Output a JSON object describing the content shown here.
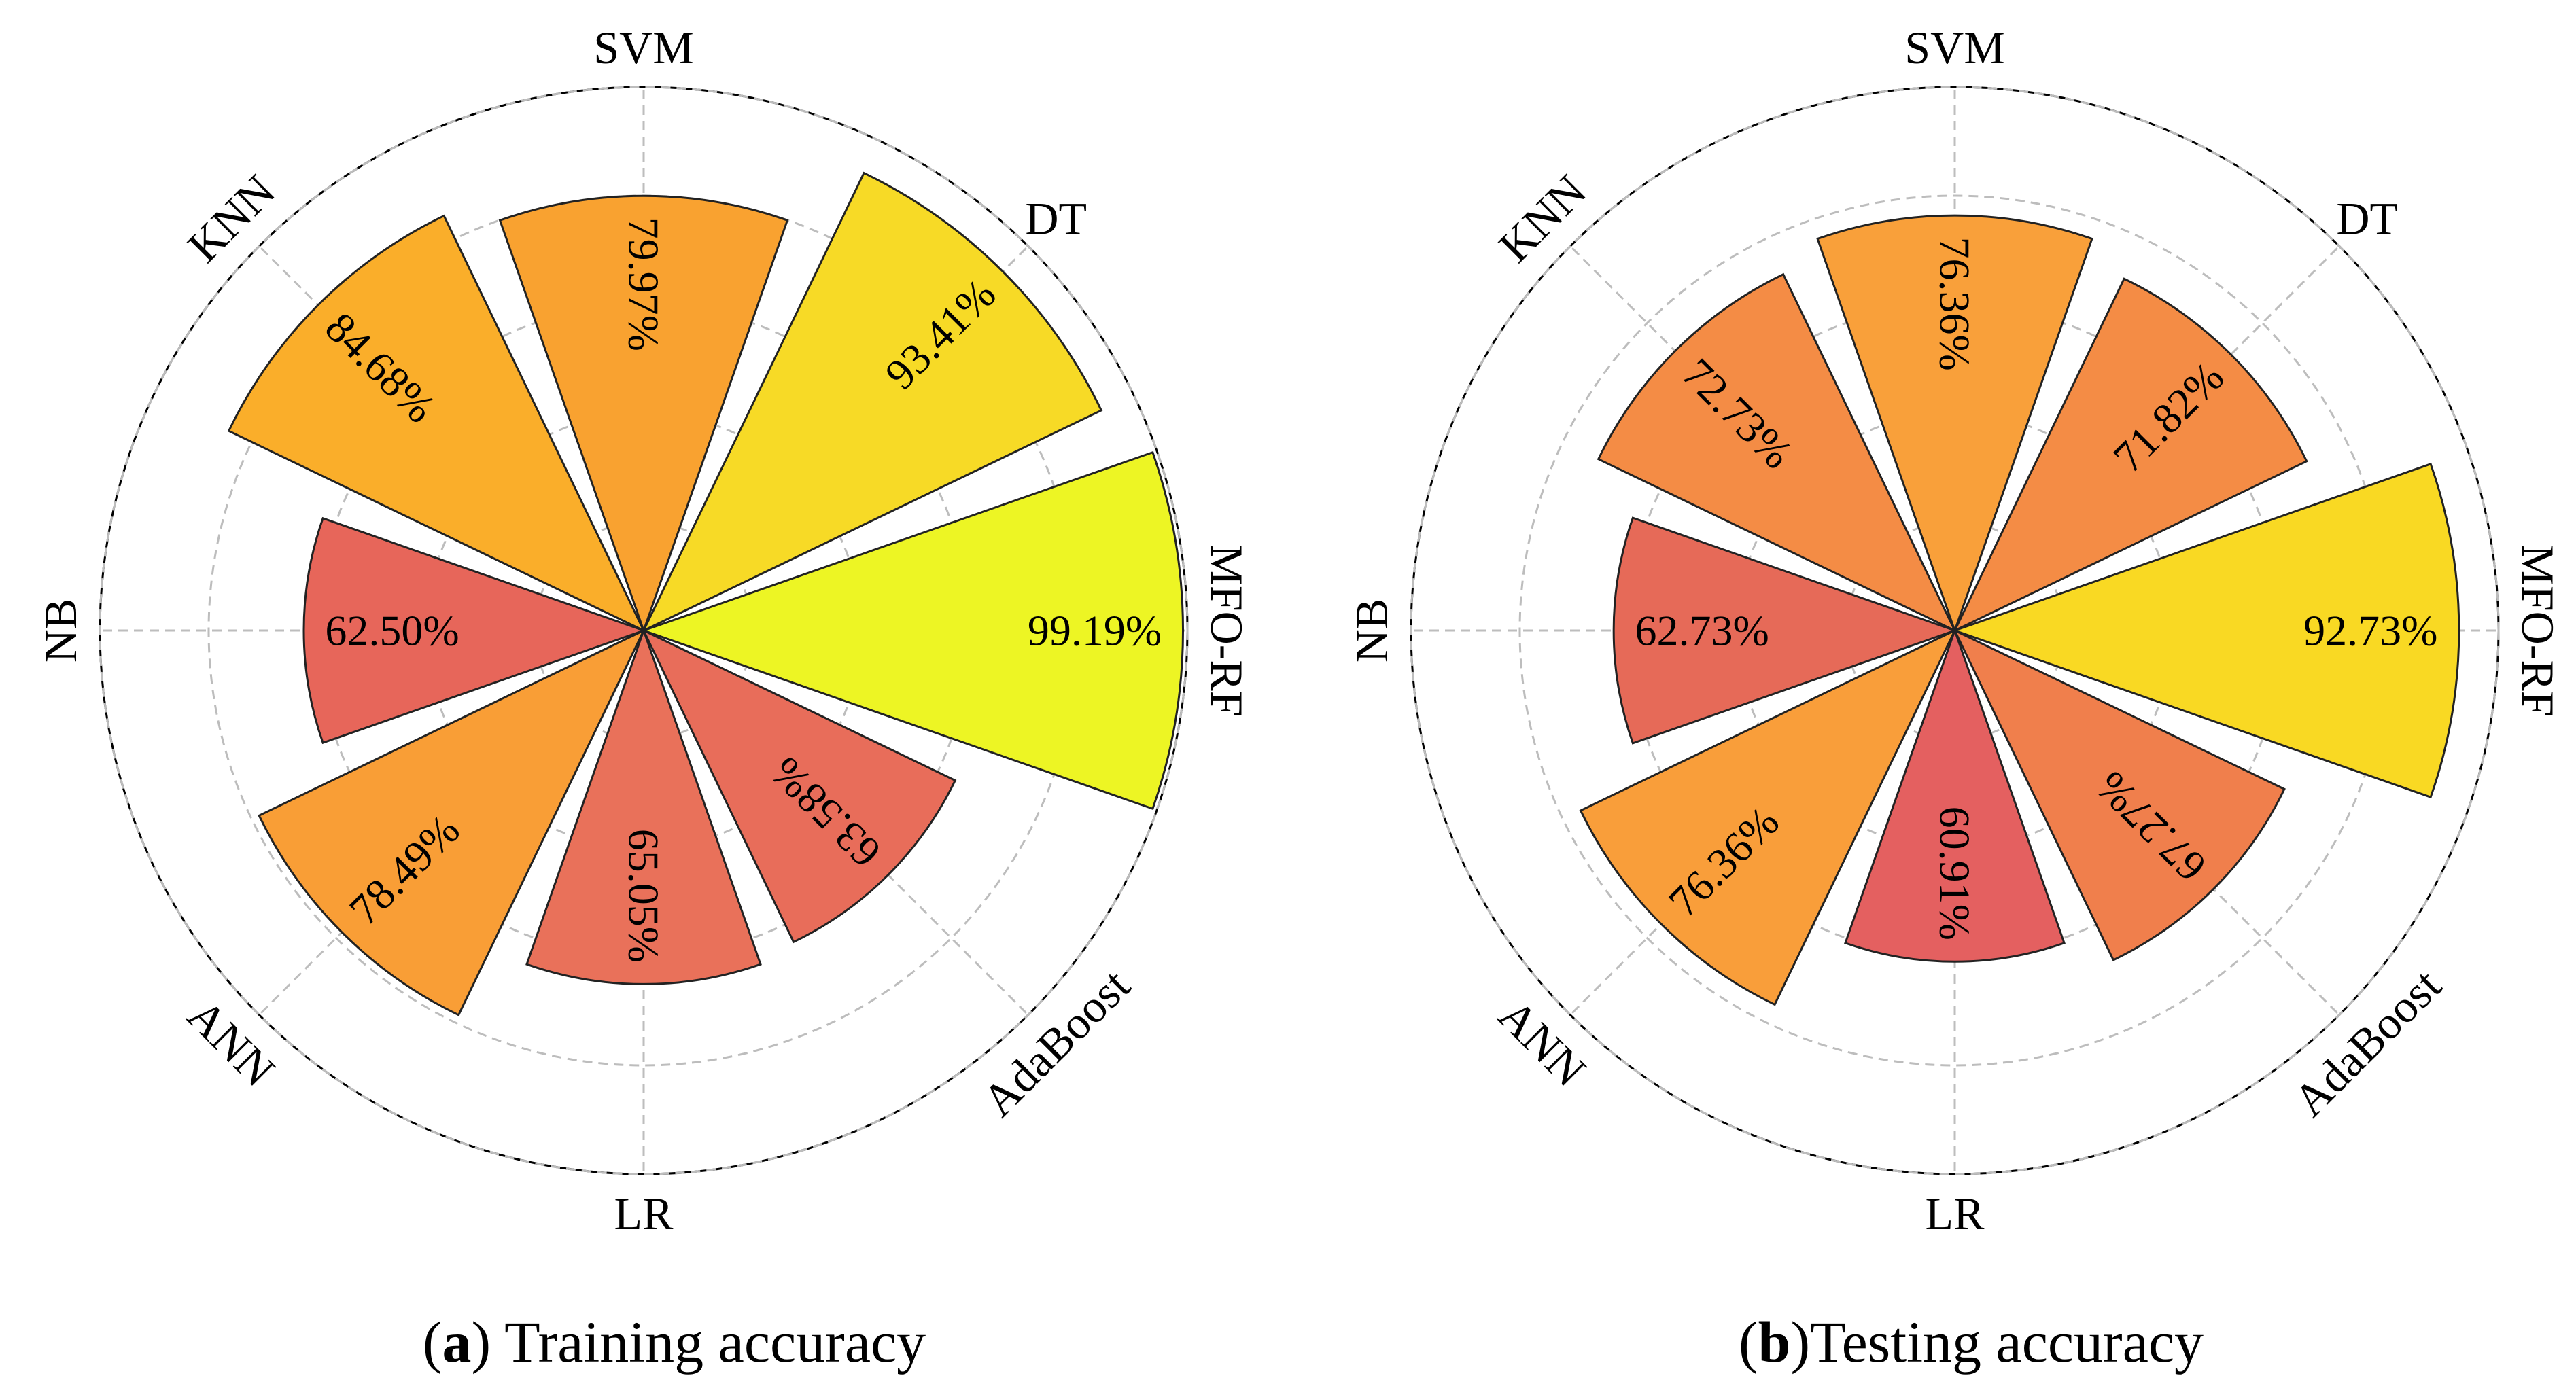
{
  "chart_data": [
    {
      "type": "polar-bar",
      "title": "",
      "caption_letter": "a",
      "caption_sep": ") ",
      "caption_text": "Training accuracy",
      "categories": [
        "MFO-RF",
        "DT",
        "SVM",
        "KNN",
        "NB",
        "ANN",
        "LR",
        "AdaBoost"
      ],
      "values": [
        99.19,
        93.41,
        79.97,
        84.68,
        62.5,
        78.49,
        65.05,
        63.58
      ],
      "value_labels": [
        "99.19%",
        "93.41%",
        "79.97%",
        "84.68%",
        "62.50%",
        "78.49%",
        "65.05%",
        "63.58%"
      ],
      "rlim": [
        0,
        100
      ],
      "grid": true,
      "colors": [
        "#EDF524",
        "#F7DA26",
        "#F9A230",
        "#FAAE2A",
        "#E7665A",
        "#F99E36",
        "#E9715A",
        "#E86D5A"
      ]
    },
    {
      "type": "polar-bar",
      "title": "",
      "caption_letter": "b",
      "caption_sep": ")",
      "caption_text": "Testing accuracy",
      "categories": [
        "MFO-RF",
        "DT",
        "SVM",
        "KNN",
        "NB",
        "ANN",
        "LR",
        "AdaBoost"
      ],
      "values": [
        92.73,
        71.82,
        76.36,
        72.73,
        62.73,
        76.36,
        60.91,
        67.27
      ],
      "value_labels": [
        "92.73%",
        "71.82%",
        "76.36%",
        "72.73%",
        "62.73%",
        "76.36%",
        "60.91%",
        "67.27%"
      ],
      "rlim": [
        0,
        100
      ],
      "grid": true,
      "colors": [
        "#F9D923",
        "#F48C45",
        "#F9A03A",
        "#F48C45",
        "#E66A58",
        "#F99E3A",
        "#E46060",
        "#F07F4C"
      ]
    }
  ]
}
